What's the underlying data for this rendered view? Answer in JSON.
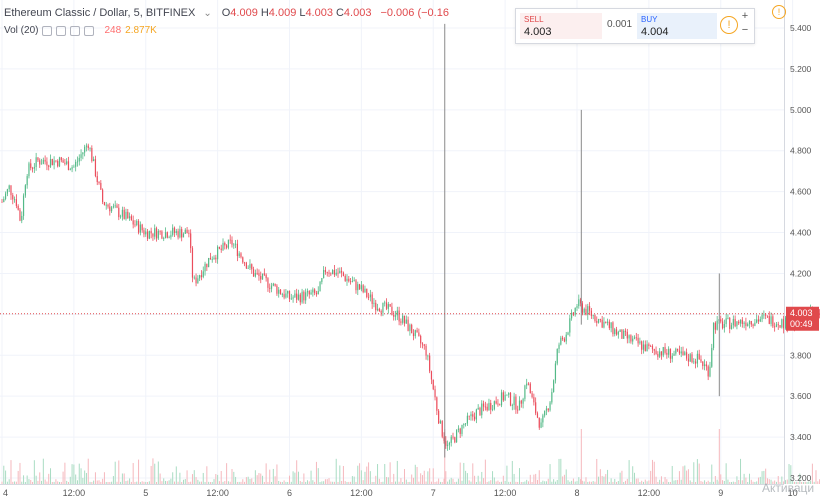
{
  "header": {
    "title": "Ethereum Classic / Dollar, 5, BITFINEX",
    "ohlc": [
      {
        "key": "O",
        "value": "4.009"
      },
      {
        "key": "H",
        "value": "4.009"
      },
      {
        "key": "L",
        "value": "4.003"
      },
      {
        "key": "C",
        "value": "4.003"
      }
    ],
    "change": "−0.006 (−0.16"
  },
  "volume_legend": {
    "label": "Vol (20)",
    "value1": "248",
    "value2": "2.877K"
  },
  "trade_panel": {
    "sell_label": "SELL",
    "sell_price": "4.003",
    "spread": "0.001",
    "buy_label": "BUY",
    "buy_price": "4.004",
    "info_icon": "!",
    "plus": "+",
    "minus": "−"
  },
  "alert_icon": "!",
  "price_tag": {
    "value": "4.003",
    "countdown": "00:49"
  },
  "watermark": "Активаци",
  "colors": {
    "up": "#53b987",
    "down": "#eb4d5c",
    "accent": "#e0494c",
    "grid": "#f0f3fa",
    "axis": "#555555"
  },
  "chart_data": {
    "type": "candlestick",
    "instrument": "Ethereum Classic / Dollar",
    "interval": "5",
    "exchange": "BITFINEX",
    "y_ticks": [
      "5.400",
      "5.200",
      "5.000",
      "4.800",
      "4.600",
      "4.400",
      "4.200",
      "4.000",
      "3.800",
      "3.600",
      "3.400",
      "3.200"
    ],
    "ylim": [
      3.2,
      5.4
    ],
    "x_ticks": [
      "4",
      "12:00",
      "5",
      "12:00",
      "6",
      "12:00",
      "7",
      "12:00",
      "8",
      "12:00",
      "9",
      "10"
    ],
    "x_domain_days": [
      4,
      10.1
    ],
    "last_price": 4.003,
    "price_path": [
      {
        "t": 4.0,
        "p": 4.55
      },
      {
        "t": 4.05,
        "p": 4.62
      },
      {
        "t": 4.1,
        "p": 4.55
      },
      {
        "t": 4.13,
        "p": 4.45
      },
      {
        "t": 4.17,
        "p": 4.7
      },
      {
        "t": 4.25,
        "p": 4.75
      },
      {
        "t": 4.4,
        "p": 4.75
      },
      {
        "t": 4.5,
        "p": 4.72
      },
      {
        "t": 4.6,
        "p": 4.84
      },
      {
        "t": 4.7,
        "p": 4.55
      },
      {
        "t": 4.85,
        "p": 4.48
      },
      {
        "t": 5.0,
        "p": 4.4
      },
      {
        "t": 5.12,
        "p": 4.4
      },
      {
        "t": 5.3,
        "p": 4.4
      },
      {
        "t": 5.33,
        "p": 4.15
      },
      {
        "t": 5.45,
        "p": 4.28
      },
      {
        "t": 5.6,
        "p": 4.35
      },
      {
        "t": 5.75,
        "p": 4.2
      },
      {
        "t": 5.88,
        "p": 4.14
      },
      {
        "t": 6.0,
        "p": 4.08
      },
      {
        "t": 6.2,
        "p": 4.1
      },
      {
        "t": 6.25,
        "p": 4.22
      },
      {
        "t": 6.35,
        "p": 4.2
      },
      {
        "t": 6.5,
        "p": 4.12
      },
      {
        "t": 6.6,
        "p": 4.05
      },
      {
        "t": 6.75,
        "p": 4.0
      },
      {
        "t": 6.85,
        "p": 3.92
      },
      {
        "t": 6.95,
        "p": 3.82
      },
      {
        "t": 7.05,
        "p": 3.45
      },
      {
        "t": 7.1,
        "p": 3.35
      },
      {
        "t": 7.2,
        "p": 3.45
      },
      {
        "t": 7.3,
        "p": 3.52
      },
      {
        "t": 7.5,
        "p": 3.6
      },
      {
        "t": 7.6,
        "p": 3.55
      },
      {
        "t": 7.65,
        "p": 3.68
      },
      {
        "t": 7.7,
        "p": 3.55
      },
      {
        "t": 7.75,
        "p": 3.45
      },
      {
        "t": 7.82,
        "p": 3.6
      },
      {
        "t": 7.87,
        "p": 3.85
      },
      {
        "t": 7.92,
        "p": 3.9
      },
      {
        "t": 8.0,
        "p": 4.05
      },
      {
        "t": 8.1,
        "p": 4.0
      },
      {
        "t": 8.2,
        "p": 3.95
      },
      {
        "t": 8.3,
        "p": 3.9
      },
      {
        "t": 8.5,
        "p": 3.83
      },
      {
        "t": 8.7,
        "p": 3.8
      },
      {
        "t": 8.85,
        "p": 3.78
      },
      {
        "t": 8.92,
        "p": 3.72
      },
      {
        "t": 8.95,
        "p": 3.95
      },
      {
        "t": 9.0,
        "p": 3.95
      },
      {
        "t": 9.3,
        "p": 3.98
      },
      {
        "t": 9.5,
        "p": 3.95
      },
      {
        "t": 9.6,
        "p": 4.0
      },
      {
        "t": 9.7,
        "p": 4.003
      }
    ],
    "spikes": [
      {
        "t": 7.08,
        "low": 3.3,
        "high": 5.42
      },
      {
        "t": 8.03,
        "low": 3.95,
        "high": 5.0
      },
      {
        "t": 8.99,
        "low": 3.6,
        "high": 4.2
      }
    ]
  }
}
